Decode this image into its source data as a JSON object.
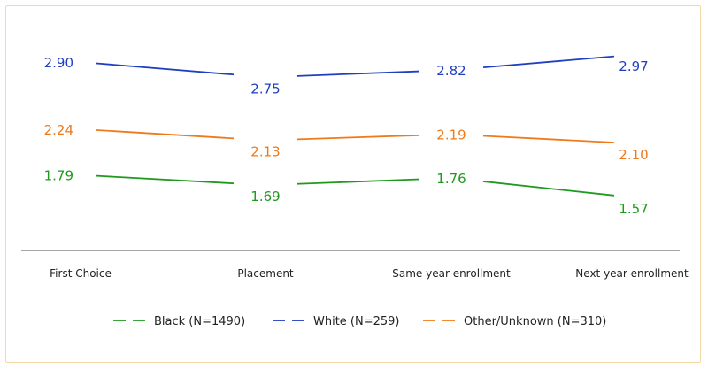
{
  "chart_data": {
    "type": "line",
    "title": "",
    "xlabel": "",
    "ylabel": "",
    "categories": [
      "First Choice",
      "Placement",
      "Same year enrollment",
      "Next year enrollment"
    ],
    "series": [
      {
        "name": "Black (N=1490)",
        "color": "#1f9a1f",
        "values": [
          1.79,
          1.69,
          1.76,
          1.57
        ],
        "labels": [
          "1.79",
          "1.69",
          "1.76",
          "1.57"
        ]
      },
      {
        "name": "White (N=259)",
        "color": "#1f3fbf",
        "values": [
          2.9,
          2.75,
          2.82,
          2.97
        ],
        "labels": [
          "2.90",
          "2.75",
          "2.82",
          "2.97"
        ]
      },
      {
        "name": "Other/Unknown (N=310)",
        "color": "#f07a1a",
        "values": [
          2.24,
          2.13,
          2.19,
          2.1
        ],
        "labels": [
          "2.24",
          "2.13",
          "2.19",
          "2.10"
        ]
      }
    ],
    "legend_position": "bottom",
    "grid": false,
    "axis_color": "#888888"
  }
}
